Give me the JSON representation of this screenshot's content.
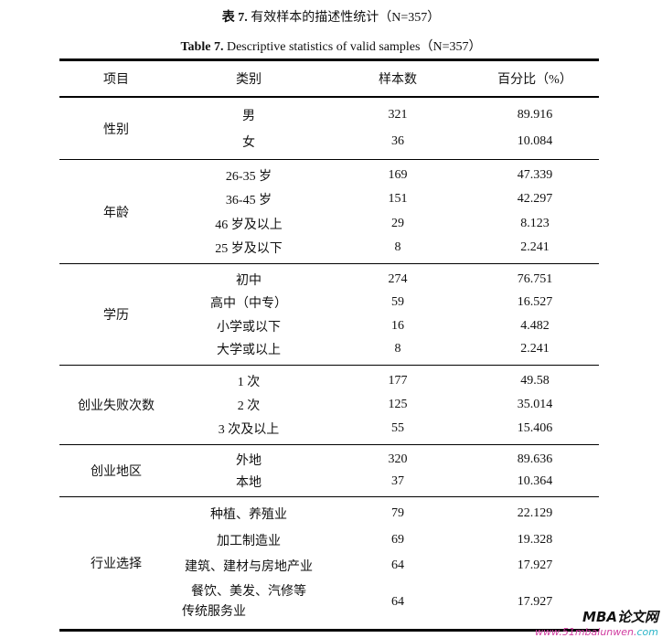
{
  "caption_cn": {
    "prefix": "表 7.",
    "text": "有效样本的描述性统计（N=357）"
  },
  "caption_en": {
    "prefix": "Table 7.",
    "text": "Descriptive statistics of valid samples（N=357）"
  },
  "headers": [
    "项目",
    "类别",
    "样本数",
    "百分比（%）"
  ],
  "groups": [
    {
      "label": "性别",
      "rows": [
        [
          "男",
          "321",
          "89.916"
        ],
        [
          "女",
          "36",
          "10.084"
        ]
      ]
    },
    {
      "label": "年龄",
      "rows": [
        [
          "26-35 岁",
          "169",
          "47.339"
        ],
        [
          "36-45 岁",
          "151",
          "42.297"
        ],
        [
          "46 岁及以上",
          "29",
          "8.123"
        ],
        [
          "25 岁及以下",
          "8",
          "2.241"
        ]
      ]
    },
    {
      "label": "学历",
      "rows": [
        [
          "初中",
          "274",
          "76.751"
        ],
        [
          "高中（中专）",
          "59",
          "16.527"
        ],
        [
          "小学或以下",
          "16",
          "4.482"
        ],
        [
          "大学或以上",
          "8",
          "2.241"
        ]
      ]
    },
    {
      "label": "创业失败次数",
      "rows": [
        [
          "1 次",
          "177",
          "49.58"
        ],
        [
          "2 次",
          "125",
          "35.014"
        ],
        [
          "3 次及以上",
          "55",
          "15.406"
        ]
      ]
    },
    {
      "label": "创业地区",
      "rows": [
        [
          "外地",
          "320",
          "89.636"
        ],
        [
          "本地",
          "37",
          "10.364"
        ]
      ]
    },
    {
      "label": "行业选择",
      "rows": [
        [
          "种植、养殖业",
          "79",
          "22.129"
        ],
        [
          "加工制造业",
          "69",
          "19.328"
        ],
        [
          "建筑、建材与房地产业",
          "64",
          "17.927"
        ],
        [
          "餐饮、美发、汽修等传统服务业",
          "64",
          "17.927"
        ]
      ]
    }
  ],
  "watermark": {
    "title": "MBA论文网",
    "url_main": "www.51mbalunwen.",
    "url_tld": "com"
  }
}
